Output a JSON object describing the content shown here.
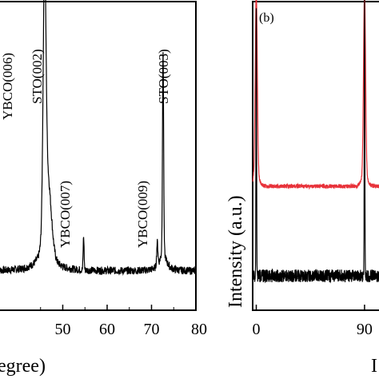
{
  "chart_data": [
    {
      "type": "line",
      "panel": "a",
      "xlabel": "(degree)",
      "xlabel_fragment": "egree)",
      "ylabel": "",
      "xlim": [
        35.5,
        80
      ],
      "ylim": [
        0,
        100
      ],
      "xticks": [
        {
          "value": 50,
          "label": "50"
        },
        {
          "value": 60,
          "label": "60"
        },
        {
          "value": 70,
          "label": "70"
        },
        {
          "value": 80,
          "label": "80"
        }
      ],
      "grid": false,
      "series_color": "#000000",
      "peaks": [
        {
          "x": 45.7,
          "y": 100,
          "label": "YBCO(006)",
          "label_fragment": "YBCO(006)"
        },
        {
          "x": 46.5,
          "y": 88,
          "label": "STO(002)"
        },
        {
          "x": 54.7,
          "y": 18,
          "label": "YBCO(007)"
        },
        {
          "x": 71.3,
          "y": 16,
          "label": "YBCO(009)"
        },
        {
          "x": 72.6,
          "y": 82,
          "label": "STO(003)"
        }
      ],
      "baseline": 5
    },
    {
      "type": "line",
      "panel": "b",
      "panel_label": "(b)",
      "ylabel": "Intensity (a.u.)",
      "xticks": [
        {
          "value": 0,
          "label": "0"
        },
        {
          "value": 90,
          "label": "90"
        }
      ],
      "xlim": [
        -3,
        110
      ],
      "grid": false,
      "series": [
        {
          "name": "",
          "color": "#e8323a",
          "baseline": 70,
          "peaks_x": [
            0,
            90
          ]
        },
        {
          "name": "",
          "color": "#000000",
          "baseline": 15,
          "peaks_x": [
            0,
            90
          ]
        }
      ],
      "xlabel_fragment": "I"
    }
  ]
}
